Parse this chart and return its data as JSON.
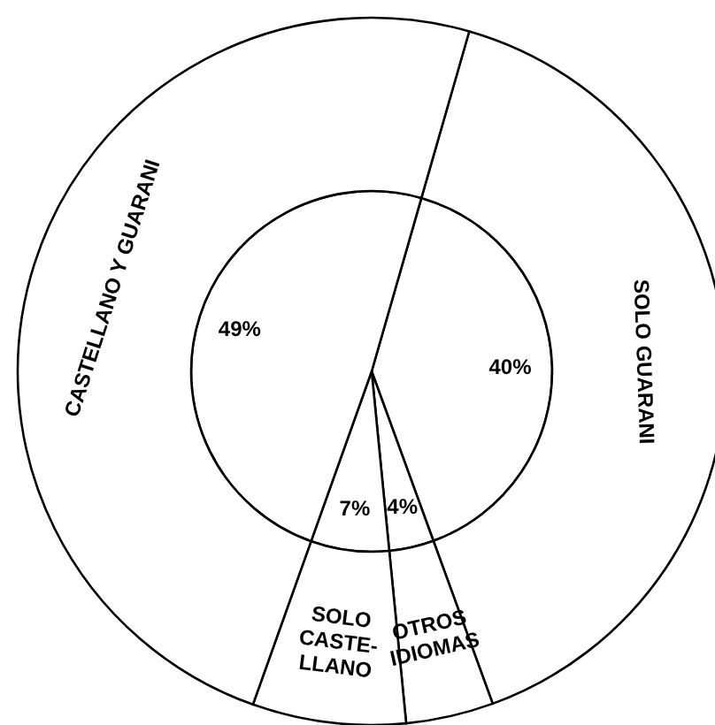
{
  "chart_data": {
    "type": "donut",
    "categories": [
      "SOLO GUARANI",
      "OTROS IDIOMAS",
      "SOLO CASTE-LLANO",
      "CASTELLANO Y GUARANI"
    ],
    "series": [
      {
        "values": [
          40,
          4,
          7,
          49
        ],
        "value_labels": [
          "40%",
          "4%",
          "7%",
          "49%"
        ],
        "colors": [
          "#ffffff",
          "#ffffff",
          "#ffffff",
          "#ffffff"
        ]
      },
      {
        "values": [
          40,
          4,
          7,
          49
        ],
        "colors": [
          "#ffffff",
          "#ffffff",
          "#ffffff",
          "#ffffff"
        ]
      }
    ],
    "legend": false
  }
}
